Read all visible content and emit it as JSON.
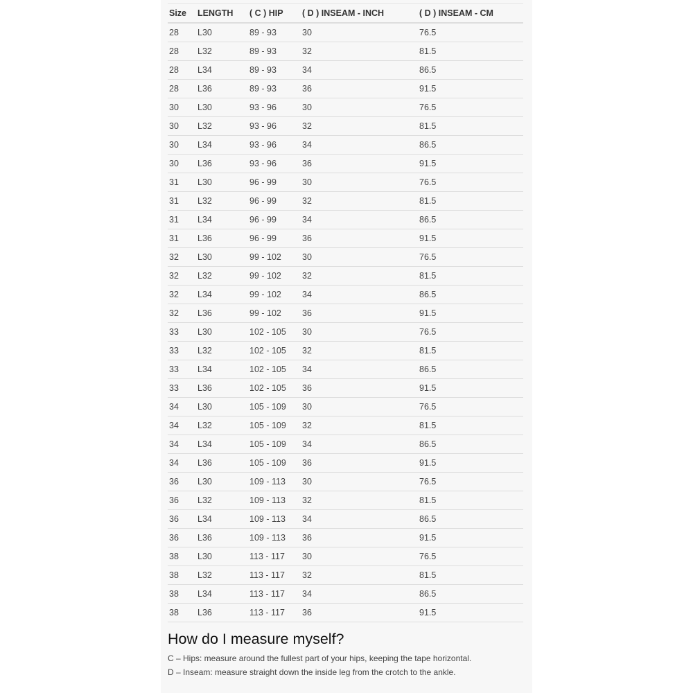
{
  "table": {
    "headers": [
      "Size",
      "LENGTH",
      "( C ) HIP",
      "( D ) INSEAM - INCH",
      "( D ) INSEAM - CM"
    ],
    "rows": [
      [
        "28",
        "L30",
        "89 - 93",
        "30",
        "76.5"
      ],
      [
        "28",
        "L32",
        "89 - 93",
        "32",
        "81.5"
      ],
      [
        "28",
        "L34",
        "89 - 93",
        "34",
        "86.5"
      ],
      [
        "28",
        "L36",
        "89 - 93",
        "36",
        "91.5"
      ],
      [
        "30",
        "L30",
        "93 - 96",
        "30",
        "76.5"
      ],
      [
        "30",
        "L32",
        "93 - 96",
        "32",
        "81.5"
      ],
      [
        "30",
        "L34",
        "93 - 96",
        "34",
        "86.5"
      ],
      [
        "30",
        "L36",
        "93 - 96",
        "36",
        "91.5"
      ],
      [
        "31",
        "L30",
        "96 - 99",
        "30",
        "76.5"
      ],
      [
        "31",
        "L32",
        "96 - 99",
        "32",
        "81.5"
      ],
      [
        "31",
        "L34",
        "96 - 99",
        "34",
        "86.5"
      ],
      [
        "31",
        "L36",
        "96 - 99",
        "36",
        "91.5"
      ],
      [
        "32",
        "L30",
        "99 - 102",
        "30",
        "76.5"
      ],
      [
        "32",
        "L32",
        "99 - 102",
        "32",
        "81.5"
      ],
      [
        "32",
        "L34",
        "99 - 102",
        "34",
        "86.5"
      ],
      [
        "32",
        "L36",
        "99 - 102",
        "36",
        "91.5"
      ],
      [
        "33",
        "L30",
        "102 - 105",
        "30",
        "76.5"
      ],
      [
        "33",
        "L32",
        "102 - 105",
        "32",
        "81.5"
      ],
      [
        "33",
        "L34",
        "102 - 105",
        "34",
        "86.5"
      ],
      [
        "33",
        "L36",
        "102 - 105",
        "36",
        "91.5"
      ],
      [
        "34",
        "L30",
        "105 - 109",
        "30",
        "76.5"
      ],
      [
        "34",
        "L32",
        "105 - 109",
        "32",
        "81.5"
      ],
      [
        "34",
        "L34",
        "105 - 109",
        "34",
        "86.5"
      ],
      [
        "34",
        "L36",
        "105 - 109",
        "36",
        "91.5"
      ],
      [
        "36",
        "L30",
        "109 - 113",
        "30",
        "76.5"
      ],
      [
        "36",
        "L32",
        "109 - 113",
        "32",
        "81.5"
      ],
      [
        "36",
        "L34",
        "109 - 113",
        "34",
        "86.5"
      ],
      [
        "36",
        "L36",
        "109 - 113",
        "36",
        "91.5"
      ],
      [
        "38",
        "L30",
        "113 - 117",
        "30",
        "76.5"
      ],
      [
        "38",
        "L32",
        "113 - 117",
        "32",
        "81.5"
      ],
      [
        "38",
        "L34",
        "113 - 117",
        "34",
        "86.5"
      ],
      [
        "38",
        "L36",
        "113 - 117",
        "36",
        "91.5"
      ]
    ]
  },
  "measure": {
    "heading": "How do I measure myself?",
    "hips_note": "C – Hips: measure around the fullest part of your hips, keeping the tape horizontal.",
    "inseam_note": "D – Inseam: measure straight down the inside leg from the crotch to the ankle."
  }
}
